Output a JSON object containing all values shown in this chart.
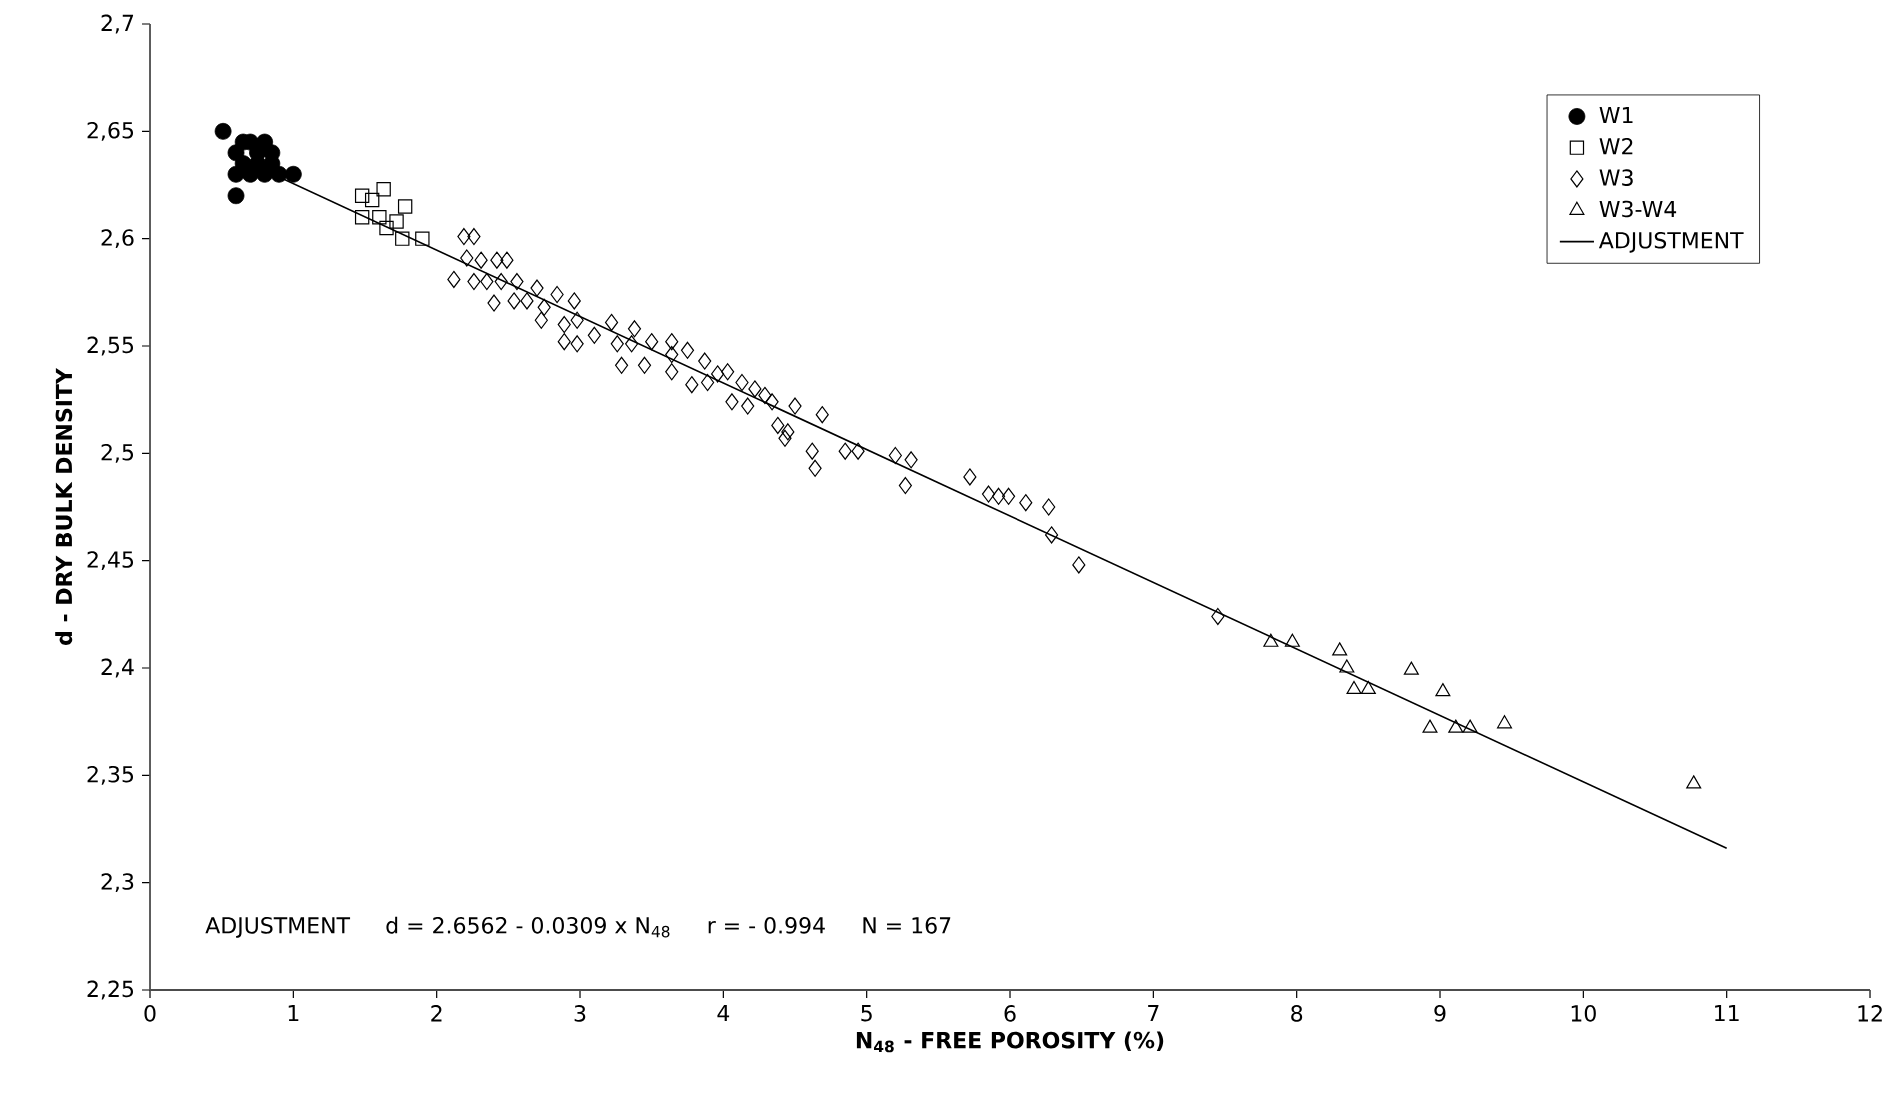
{
  "chart_data": {
    "type": "scatter",
    "xlabel": "N$_{48}$ - FREE POROSITY (%)",
    "ylabel": "d - DRY BULK DENSITY",
    "xlim": [
      0,
      12
    ],
    "xticks": [
      0,
      1,
      2,
      3,
      4,
      5,
      6,
      7,
      8,
      9,
      10,
      11,
      12
    ],
    "ylim": [
      2.25,
      2.7
    ],
    "yticks": [
      {
        "value": 2.25,
        "label": "2,25"
      },
      {
        "value": 2.3,
        "label": "2,3"
      },
      {
        "value": 2.35,
        "label": "2,35"
      },
      {
        "value": 2.4,
        "label": "2,4"
      },
      {
        "value": 2.45,
        "label": "2,45"
      },
      {
        "value": 2.5,
        "label": "2,5"
      },
      {
        "value": 2.55,
        "label": "2,55"
      },
      {
        "value": 2.6,
        "label": "2,6"
      },
      {
        "value": 2.65,
        "label": "2,65"
      },
      {
        "value": 2.7,
        "label": "2,7"
      }
    ],
    "legend": "top right",
    "grid": false,
    "annotations": [
      "ADJUSTMENT",
      "d = 2.6562 - 0.0309 x N$_{48}$",
      "r = - 0.994",
      "N = 167"
    ],
    "series": [
      {
        "name": "W1",
        "color": "#000000",
        "marker": "circle",
        "x": [
          0.51,
          0.6,
          0.65,
          0.7,
          0.75,
          0.8,
          0.85,
          0.6,
          0.7,
          0.8,
          0.9,
          1.0,
          0.6,
          0.65,
          0.75,
          0.85
        ],
        "values": [
          2.65,
          2.64,
          2.645,
          2.645,
          2.64,
          2.645,
          2.64,
          2.63,
          2.63,
          2.63,
          2.63,
          2.63,
          2.62,
          2.635,
          2.635,
          2.635
        ]
      },
      {
        "name": "W2",
        "color": "#000000",
        "marker": "square",
        "x": [
          1.48,
          1.63,
          1.78,
          1.48,
          1.6,
          1.72,
          1.76,
          1.9,
          1.55,
          1.65
        ],
        "values": [
          2.62,
          2.623,
          2.615,
          2.61,
          2.61,
          2.608,
          2.6,
          2.6,
          2.618,
          2.605
        ]
      },
      {
        "name": "W3",
        "color": "#000000",
        "marker": "diamond",
        "x": [
          2.19,
          2.26,
          2.21,
          2.31,
          2.42,
          2.49,
          2.12,
          2.26,
          2.35,
          2.45,
          2.56,
          2.4,
          2.54,
          2.63,
          2.7,
          2.84,
          2.75,
          2.73,
          2.89,
          2.96,
          2.98,
          2.89,
          2.98,
          3.1,
          3.22,
          3.26,
          3.29,
          3.38,
          3.36,
          3.45,
          3.5,
          3.64,
          3.64,
          3.64,
          3.75,
          3.78,
          3.87,
          3.89,
          3.96,
          4.03,
          4.06,
          4.13,
          4.17,
          4.22,
          4.29,
          4.34,
          4.5,
          4.38,
          4.45,
          4.43,
          4.62,
          4.64,
          4.69,
          4.85,
          4.94,
          5.2,
          5.31,
          5.27,
          5.72,
          5.85,
          5.92,
          5.99,
          6.11,
          6.27,
          6.29,
          6.48,
          7.45
        ],
        "values": [
          2.601,
          2.601,
          2.591,
          2.59,
          2.59,
          2.59,
          2.581,
          2.58,
          2.58,
          2.58,
          2.58,
          2.57,
          2.571,
          2.571,
          2.577,
          2.574,
          2.568,
          2.562,
          2.56,
          2.571,
          2.562,
          2.552,
          2.551,
          2.555,
          2.561,
          2.551,
          2.541,
          2.558,
          2.551,
          2.541,
          2.552,
          2.552,
          2.546,
          2.538,
          2.548,
          2.532,
          2.543,
          2.533,
          2.537,
          2.538,
          2.524,
          2.533,
          2.522,
          2.53,
          2.527,
          2.524,
          2.522,
          2.513,
          2.51,
          2.507,
          2.501,
          2.493,
          2.518,
          2.501,
          2.501,
          2.499,
          2.497,
          2.485,
          2.489,
          2.481,
          2.48,
          2.48,
          2.477,
          2.475,
          2.462,
          2.448,
          2.424
        ]
      },
      {
        "name": "W3-W4",
        "color": "#000000",
        "marker": "triangle",
        "x": [
          7.82,
          7.97,
          8.3,
          8.35,
          8.4,
          8.5,
          8.8,
          8.93,
          9.02,
          9.11,
          9.21,
          9.45,
          10.77
        ],
        "values": [
          2.412,
          2.412,
          2.408,
          2.4,
          2.39,
          2.39,
          2.399,
          2.372,
          2.389,
          2.372,
          2.372,
          2.374,
          2.346
        ]
      },
      {
        "name": "ADJUSTMENT",
        "type": "line",
        "color": "#000000",
        "marker": "none",
        "line_style": "solid",
        "x": [
          0.6,
          11
        ],
        "values": [
          2.638,
          2.316
        ]
      }
    ]
  }
}
